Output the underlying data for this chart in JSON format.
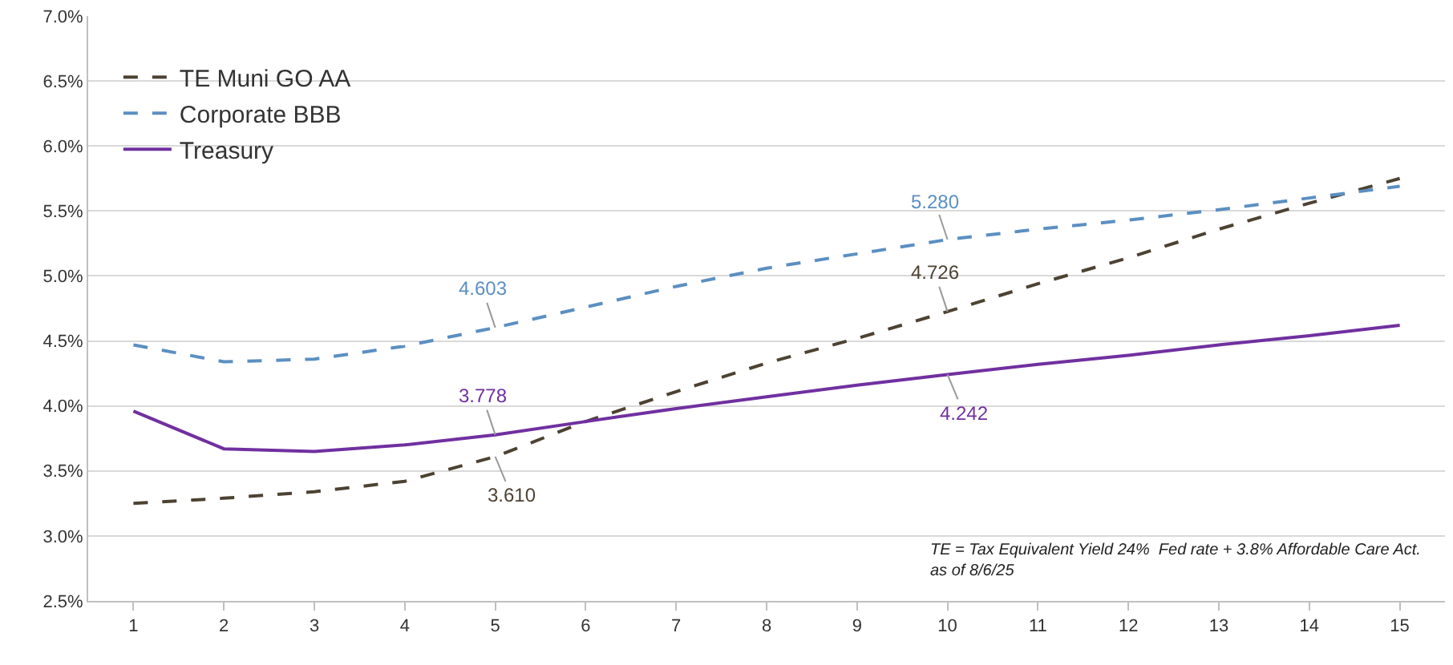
{
  "chart_data": {
    "type": "line",
    "x": [
      1,
      2,
      3,
      4,
      5,
      6,
      7,
      8,
      9,
      10,
      11,
      12,
      13,
      14,
      15
    ],
    "xlim": [
      0.5,
      15.5
    ],
    "xticks": [
      1,
      2,
      3,
      4,
      5,
      6,
      7,
      8,
      9,
      10,
      11,
      12,
      13,
      14,
      15
    ],
    "ylim": [
      2.5,
      7.0
    ],
    "yticks": [
      {
        "value": 2.5,
        "label": "2.5%"
      },
      {
        "value": 3.0,
        "label": "3.0%"
      },
      {
        "value": 3.5,
        "label": "3.5%"
      },
      {
        "value": 4.0,
        "label": "4.0%"
      },
      {
        "value": 4.5,
        "label": "4.5%"
      },
      {
        "value": 5.0,
        "label": "5.0%"
      },
      {
        "value": 5.5,
        "label": "5.5%"
      },
      {
        "value": 6.0,
        "label": "6.0%"
      },
      {
        "value": 6.5,
        "label": "6.5%"
      },
      {
        "value": 7.0,
        "label": "7.0%"
      }
    ],
    "grid": "y",
    "legend": "top left",
    "marker": "none",
    "series": [
      {
        "name": "TE Muni GO AA",
        "color": "#4d4232",
        "line_style": "dashed",
        "values": [
          3.25,
          3.29,
          3.34,
          3.42,
          3.61,
          3.88,
          4.11,
          4.33,
          4.52,
          4.726,
          4.94,
          5.14,
          5.36,
          5.56,
          5.75
        ],
        "value_labels": [
          null,
          null,
          null,
          null,
          "3.610",
          null,
          null,
          null,
          null,
          "4.726",
          null,
          null,
          null,
          null,
          null
        ]
      },
      {
        "name": "Corporate BBB",
        "color": "#5b8fc2",
        "line_style": "dashed",
        "values": [
          4.47,
          4.34,
          4.36,
          4.46,
          4.603,
          4.76,
          4.92,
          5.06,
          5.17,
          5.28,
          5.36,
          5.43,
          5.51,
          5.6,
          5.69
        ],
        "value_labels": [
          null,
          null,
          null,
          null,
          "4.603",
          null,
          null,
          null,
          null,
          "5.280",
          null,
          null,
          null,
          null,
          null
        ]
      },
      {
        "name": "Treasury",
        "color": "#7030a0",
        "line_style": "solid",
        "values": [
          3.96,
          3.67,
          3.65,
          3.7,
          3.778,
          3.88,
          3.98,
          4.07,
          4.16,
          4.242,
          4.32,
          4.39,
          4.47,
          4.54,
          4.62
        ],
        "value_labels": [
          null,
          null,
          null,
          null,
          "3.778",
          null,
          null,
          null,
          null,
          "4.242",
          null,
          null,
          null,
          null,
          null
        ]
      }
    ],
    "annotations": [
      "TE = Tax Equivalent Yield 24%  Fed rate + 3.8% Affordable Care Act.",
      "as of 8/6/25"
    ]
  }
}
